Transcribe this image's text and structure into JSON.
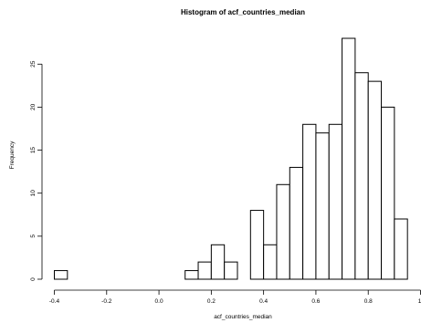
{
  "chart_data": {
    "type": "bar",
    "title": "Histogram of acf_countries_median",
    "xlabel": "acf_countries_median",
    "ylabel": "Frequency",
    "bin_width": 0.05,
    "bin_starts": [
      -0.4,
      -0.35,
      -0.3,
      -0.25,
      -0.2,
      -0.15,
      -0.1,
      -0.05,
      0.0,
      0.05,
      0.1,
      0.15,
      0.2,
      0.25,
      0.3,
      0.35,
      0.4,
      0.45,
      0.5,
      0.55,
      0.6,
      0.65,
      0.7,
      0.75,
      0.8,
      0.85,
      0.9
    ],
    "values": [
      1,
      0,
      0,
      0,
      0,
      0,
      0,
      0,
      0,
      0,
      1,
      2,
      4,
      2,
      0,
      8,
      4,
      11,
      13,
      18,
      17,
      18,
      28,
      24,
      23,
      20,
      7
    ],
    "xlim": [
      -0.4,
      1.0
    ],
    "ylim": [
      0,
      28
    ],
    "x_ticks": [
      "-0.4",
      "-0.2",
      "0.0",
      "0.2",
      "0.4",
      "0.6",
      "0.8",
      "1."
    ],
    "x_tick_values": [
      -0.4,
      -0.2,
      0.0,
      0.2,
      0.4,
      0.6,
      0.8,
      1.0
    ],
    "y_ticks": [
      "0",
      "5",
      "10",
      "15",
      "20",
      "25"
    ],
    "y_tick_values": [
      0,
      5,
      10,
      15,
      20,
      25
    ],
    "grid": false
  }
}
